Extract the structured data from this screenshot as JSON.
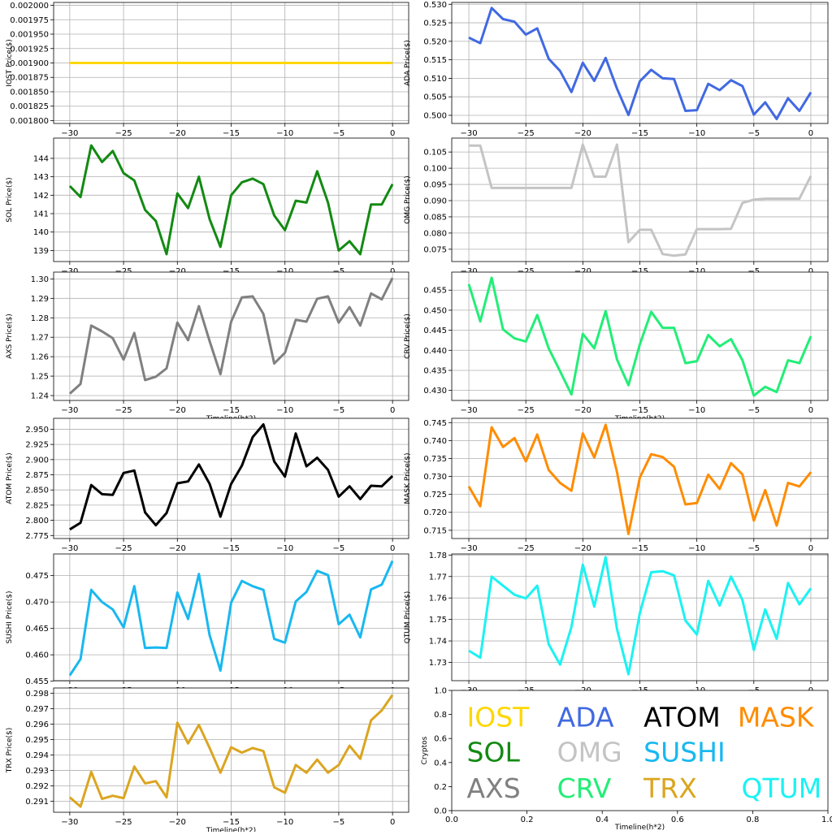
{
  "chart_data": [
    {
      "type": "line",
      "name": "IOST",
      "ylabel": "IOST Price($)",
      "xlabel": "",
      "color": "#ffd700",
      "xlim": [
        -31.5,
        1.5
      ],
      "ylim": [
        0.001795,
        0.002005
      ],
      "yticks": [
        "0.001800",
        "0.001825",
        "0.001850",
        "0.001875",
        "0.001900",
        "0.001925",
        "0.001950",
        "0.001975",
        "0.002000"
      ],
      "ytick_values": [
        0.0018,
        0.001825,
        0.00185,
        0.001875,
        0.0019,
        0.001925,
        0.00195,
        0.001975,
        0.002
      ],
      "xticks": [
        "−30",
        "−25",
        "−20",
        "−15",
        "−10",
        "−5",
        "0"
      ],
      "x": [
        -30,
        -29,
        -28,
        -27,
        -26,
        -25,
        -24,
        -23,
        -22,
        -21,
        -20,
        -19,
        -18,
        -17,
        -16,
        -15,
        -14,
        -13,
        -12,
        -11,
        -10,
        -9,
        -8,
        -7,
        -6,
        -5,
        -4,
        -3,
        -2,
        -1,
        0
      ],
      "values": [
        0.0019,
        0.0019,
        0.0019,
        0.0019,
        0.0019,
        0.0019,
        0.0019,
        0.0019,
        0.0019,
        0.0019,
        0.0019,
        0.0019,
        0.0019,
        0.0019,
        0.0019,
        0.0019,
        0.0019,
        0.0019,
        0.0019,
        0.0019,
        0.0019,
        0.0019,
        0.0019,
        0.0019,
        0.0019,
        0.0019,
        0.0019,
        0.0019,
        0.0019,
        0.0019,
        0.0019
      ]
    },
    {
      "type": "line",
      "name": "ADA",
      "ylabel": "ADA Price($)",
      "xlabel": "",
      "color": "#4169e1",
      "xlim": [
        -31.5,
        1.5
      ],
      "ylim": [
        0.4978,
        0.5305
      ],
      "yticks": [
        "0.500",
        "0.505",
        "0.510",
        "0.515",
        "0.520",
        "0.525",
        "0.530"
      ],
      "ytick_values": [
        0.5,
        0.505,
        0.51,
        0.515,
        0.52,
        0.525,
        0.53
      ],
      "xticks": [
        "−30",
        "−25",
        "−20",
        "−15",
        "−10",
        "−5",
        "0"
      ],
      "x": [
        -30,
        -29,
        -28,
        -27,
        -26,
        -25,
        -24,
        -23,
        -22,
        -21,
        -20,
        -19,
        -18,
        -17,
        -16,
        -15,
        -14,
        -13,
        -12,
        -11,
        -10,
        -9,
        -8,
        -7,
        -6,
        -5,
        -4,
        -3,
        -2,
        -1,
        0
      ],
      "values": [
        0.521,
        0.5195,
        0.529,
        0.526,
        0.5253,
        0.5218,
        0.5235,
        0.5153,
        0.512,
        0.5063,
        0.5142,
        0.5093,
        0.5155,
        0.5072,
        0.5001,
        0.5092,
        0.5123,
        0.51,
        0.5098,
        0.5012,
        0.5014,
        0.5085,
        0.5068,
        0.5095,
        0.5079,
        0.5002,
        0.5035,
        0.499,
        0.5046,
        0.5012,
        0.5062
      ]
    },
    {
      "type": "line",
      "name": "SOL",
      "ylabel": "SOL Price($)",
      "xlabel": "",
      "color": "#138a13",
      "xlim": [
        -31.5,
        1.5
      ],
      "ylim": [
        138.4,
        145.1
      ],
      "yticks": [
        "139",
        "140",
        "141",
        "142",
        "143",
        "144"
      ],
      "ytick_values": [
        139,
        140,
        141,
        142,
        143,
        144
      ],
      "xticks": [
        "−30",
        "−25",
        "−20",
        "−15",
        "−10",
        "−5",
        "0"
      ],
      "x": [
        -30,
        -29,
        -28,
        -27,
        -26,
        -25,
        -24,
        -23,
        -22,
        -21,
        -20,
        -19,
        -18,
        -17,
        -16,
        -15,
        -14,
        -13,
        -12,
        -11,
        -10,
        -9,
        -8,
        -7,
        -6,
        -5,
        -4,
        -3,
        -2,
        -1,
        0
      ],
      "values": [
        142.5,
        141.9,
        144.7,
        143.8,
        144.4,
        143.2,
        142.8,
        141.2,
        140.6,
        138.8,
        142.1,
        141.3,
        143.0,
        140.7,
        139.2,
        142.0,
        142.7,
        142.9,
        142.6,
        140.9,
        140.1,
        141.7,
        141.6,
        143.3,
        141.6,
        139.0,
        139.5,
        138.8,
        141.5,
        141.5,
        142.6
      ]
    },
    {
      "type": "line",
      "name": "OMG",
      "ylabel": "OMG Price($)",
      "xlabel": "",
      "color": "#c4c4c4",
      "xlim": [
        -31.5,
        1.5
      ],
      "ylim": [
        0.0712,
        0.1093
      ],
      "yticks": [
        "0.075",
        "0.080",
        "0.085",
        "0.090",
        "0.095",
        "0.100",
        "0.105"
      ],
      "ytick_values": [
        0.075,
        0.08,
        0.085,
        0.09,
        0.095,
        0.1,
        0.105
      ],
      "xticks": [
        "−30",
        "−25",
        "−20",
        "−15",
        "−10",
        "−5",
        "0"
      ],
      "x": [
        -30,
        -29,
        -28,
        -27,
        -26,
        -25,
        -24,
        -23,
        -22,
        -21,
        -20,
        -19,
        -18,
        -17,
        -16,
        -15,
        -14,
        -13,
        -12,
        -11,
        -10,
        -9,
        -8,
        -7,
        -6,
        -5,
        -4,
        -3,
        -2,
        -1,
        0
      ],
      "values": [
        0.107,
        0.107,
        0.0939,
        0.0939,
        0.0939,
        0.0939,
        0.0939,
        0.0939,
        0.0939,
        0.0939,
        0.1073,
        0.0974,
        0.0974,
        0.1073,
        0.0772,
        0.081,
        0.081,
        0.0735,
        0.073,
        0.0734,
        0.0812,
        0.0812,
        0.0812,
        0.0813,
        0.0893,
        0.0903,
        0.0906,
        0.0906,
        0.0906,
        0.0906,
        0.0976
      ]
    },
    {
      "type": "line",
      "name": "AXS",
      "ylabel": "AXS Price($)",
      "xlabel": "Timeline(h*2)",
      "color": "#808080",
      "xlim": [
        -31.5,
        1.5
      ],
      "ylim": [
        1.2375,
        1.3035
      ],
      "yticks": [
        "1.24",
        "1.25",
        "1.26",
        "1.27",
        "1.28",
        "1.29",
        "1.30"
      ],
      "ytick_values": [
        1.24,
        1.25,
        1.26,
        1.27,
        1.28,
        1.29,
        1.3
      ],
      "xticks": [
        "−30",
        "−25",
        "−20",
        "−15",
        "−10",
        "−5",
        "0"
      ],
      "x": [
        -30,
        -29,
        -28,
        -27,
        -26,
        -25,
        -24,
        -23,
        -22,
        -21,
        -20,
        -19,
        -18,
        -17,
        -16,
        -15,
        -14,
        -13,
        -12,
        -11,
        -10,
        -9,
        -8,
        -7,
        -6,
        -5,
        -4,
        -3,
        -2,
        -1,
        0
      ],
      "values": [
        1.241,
        1.246,
        1.276,
        1.273,
        1.2695,
        1.2585,
        1.2722,
        1.248,
        1.2497,
        1.254,
        1.2775,
        1.2685,
        1.286,
        1.268,
        1.251,
        1.278,
        1.2905,
        1.291,
        1.282,
        1.2565,
        1.262,
        1.279,
        1.278,
        1.2898,
        1.291,
        1.2775,
        1.2855,
        1.276,
        1.2925,
        1.2895,
        1.3005
      ]
    },
    {
      "type": "line",
      "name": "CRV",
      "ylabel": "CRV Price($)",
      "xlabel": "Timeline(h*2)",
      "color": "#22ee77",
      "xlim": [
        -31.5,
        1.5
      ],
      "ylim": [
        0.4275,
        0.4595
      ],
      "yticks": [
        "0.430",
        "0.435",
        "0.440",
        "0.445",
        "0.450",
        "0.455"
      ],
      "ytick_values": [
        0.43,
        0.435,
        0.44,
        0.445,
        0.45,
        0.455
      ],
      "xticks": [
        "−30",
        "−25",
        "−20",
        "−15",
        "−10",
        "−5",
        "0"
      ],
      "x": [
        -30,
        -29,
        -28,
        -27,
        -26,
        -25,
        -24,
        -23,
        -22,
        -21,
        -20,
        -19,
        -18,
        -17,
        -16,
        -15,
        -14,
        -13,
        -12,
        -11,
        -10,
        -9,
        -8,
        -7,
        -6,
        -5,
        -4,
        -3,
        -2,
        -1,
        0
      ],
      "values": [
        0.4565,
        0.4472,
        0.4581,
        0.4452,
        0.443,
        0.4422,
        0.4488,
        0.4405,
        0.4348,
        0.429,
        0.4441,
        0.4405,
        0.4498,
        0.4377,
        0.4313,
        0.4415,
        0.4496,
        0.4456,
        0.4456,
        0.4368,
        0.4373,
        0.4438,
        0.441,
        0.4428,
        0.4375,
        0.4287,
        0.4309,
        0.4296,
        0.4375,
        0.4368,
        0.4435
      ]
    },
    {
      "type": "line",
      "name": "ATOM",
      "ylabel": "ATOM  Price($)",
      "xlabel": "",
      "color": "#000000",
      "xlim": [
        -31.5,
        1.5
      ],
      "ylim": [
        2.77,
        2.968
      ],
      "yticks": [
        "2.775",
        "2.800",
        "2.825",
        "2.850",
        "2.875",
        "2.900",
        "2.925",
        "2.950"
      ],
      "ytick_values": [
        2.775,
        2.8,
        2.825,
        2.85,
        2.875,
        2.9,
        2.925,
        2.95
      ],
      "xticks": [
        "−30",
        "−25",
        "−20",
        "−15",
        "−10",
        "−5",
        "0"
      ],
      "x": [
        -30,
        -29,
        -28,
        -27,
        -26,
        -25,
        -24,
        -23,
        -22,
        -21,
        -20,
        -19,
        -18,
        -17,
        -16,
        -15,
        -14,
        -13,
        -12,
        -11,
        -10,
        -9,
        -8,
        -7,
        -6,
        -5,
        -4,
        -3,
        -2,
        -1,
        0
      ],
      "values": [
        2.785,
        2.796,
        2.858,
        2.843,
        2.842,
        2.878,
        2.882,
        2.813,
        2.792,
        2.812,
        2.861,
        2.864,
        2.892,
        2.86,
        2.806,
        2.86,
        2.89,
        2.937,
        2.958,
        2.897,
        2.872,
        2.943,
        2.889,
        2.903,
        2.883,
        2.839,
        2.856,
        2.835,
        2.857,
        2.856,
        2.873
      ]
    },
    {
      "type": "line",
      "name": "MASK",
      "ylabel": "MASK  Price($)",
      "xlabel": "",
      "color": "#ff8c00",
      "xlim": [
        -31.5,
        1.5
      ],
      "ylim": [
        0.7127,
        0.7462
      ],
      "yticks": [
        "0.715",
        "0.720",
        "0.725",
        "0.730",
        "0.735",
        "0.740",
        "0.745"
      ],
      "ytick_values": [
        0.715,
        0.72,
        0.725,
        0.73,
        0.735,
        0.74,
        0.745
      ],
      "xticks": [
        "−30",
        "−25",
        "−20",
        "−15",
        "−10",
        "−5",
        "0"
      ],
      "x": [
        -30,
        -29,
        -28,
        -27,
        -26,
        -25,
        -24,
        -23,
        -22,
        -21,
        -20,
        -19,
        -18,
        -17,
        -16,
        -15,
        -14,
        -13,
        -12,
        -11,
        -10,
        -9,
        -8,
        -7,
        -6,
        -5,
        -4,
        -3,
        -2,
        -1,
        0
      ],
      "values": [
        0.7272,
        0.7217,
        0.7437,
        0.7382,
        0.7407,
        0.7342,
        0.7417,
        0.7318,
        0.7282,
        0.726,
        0.742,
        0.7353,
        0.7444,
        0.7312,
        0.714,
        0.7297,
        0.7362,
        0.7354,
        0.7327,
        0.7222,
        0.7226,
        0.7305,
        0.7265,
        0.7337,
        0.7306,
        0.7177,
        0.7262,
        0.7163,
        0.7282,
        0.7272,
        0.7312
      ]
    },
    {
      "type": "line",
      "name": "SUSHI",
      "ylabel": "SUSHI Price($)",
      "xlabel": "",
      "color": "#19b8f0",
      "xlim": [
        -31.5,
        1.5
      ],
      "ylim": [
        0.4551,
        0.4791
      ],
      "yticks": [
        "0.455",
        "0.460",
        "0.465",
        "0.470",
        "0.475"
      ],
      "ytick_values": [
        0.455,
        0.46,
        0.465,
        0.47,
        0.475
      ],
      "xticks": [
        "−30",
        "−25",
        "−20",
        "−15",
        "−10",
        "−5",
        "0"
      ],
      "x": [
        -30,
        -29,
        -28,
        -27,
        -26,
        -25,
        -24,
        -23,
        -22,
        -21,
        -20,
        -19,
        -18,
        -17,
        -16,
        -15,
        -14,
        -13,
        -12,
        -11,
        -10,
        -9,
        -8,
        -7,
        -6,
        -5,
        -4,
        -3,
        -2,
        -1,
        0
      ],
      "values": [
        0.4561,
        0.4592,
        0.4723,
        0.47,
        0.4686,
        0.4652,
        0.473,
        0.4613,
        0.4614,
        0.4613,
        0.4718,
        0.4668,
        0.4753,
        0.4637,
        0.457,
        0.4699,
        0.474,
        0.473,
        0.4723,
        0.463,
        0.4623,
        0.4701,
        0.4719,
        0.4759,
        0.4751,
        0.4658,
        0.4676,
        0.4633,
        0.4724,
        0.4733,
        0.4778
      ]
    },
    {
      "type": "line",
      "name": "QTUM",
      "ylabel": "QTUM Price($)",
      "xlabel": "",
      "color": "#1cf2f2",
      "xlim": [
        -31.5,
        1.5
      ],
      "ylim": [
        1.7215,
        1.7805
      ],
      "yticks": [
        "1.73",
        "1.74",
        "1.75",
        "1.76",
        "1.77",
        "1.78"
      ],
      "ytick_values": [
        1.73,
        1.74,
        1.75,
        1.76,
        1.77,
        1.78
      ],
      "xticks": [
        "−30",
        "−25",
        "−20",
        "−15",
        "−10",
        "−5",
        "0"
      ],
      "x": [
        -30,
        -29,
        -28,
        -27,
        -26,
        -25,
        -24,
        -23,
        -22,
        -21,
        -20,
        -19,
        -18,
        -17,
        -16,
        -15,
        -14,
        -13,
        -12,
        -11,
        -10,
        -9,
        -8,
        -7,
        -6,
        -5,
        -4,
        -3,
        -2,
        -1,
        0
      ],
      "values": [
        1.7355,
        1.7322,
        1.77,
        1.7657,
        1.7615,
        1.7598,
        1.7657,
        1.7385,
        1.729,
        1.7465,
        1.7755,
        1.756,
        1.779,
        1.7455,
        1.7245,
        1.753,
        1.772,
        1.7725,
        1.7705,
        1.7495,
        1.743,
        1.768,
        1.7565,
        1.77,
        1.759,
        1.7358,
        1.7547,
        1.741,
        1.767,
        1.757,
        1.7645
      ]
    },
    {
      "type": "line",
      "name": "TRX",
      "ylabel": "TRX Price($)",
      "xlabel": "Timeline(h*2)",
      "color": "#dba520",
      "xlim": [
        -31.5,
        1.5
      ],
      "ylim": [
        0.29028,
        0.29835
      ],
      "yticks": [
        "0.291",
        "0.292",
        "0.293",
        "0.294",
        "0.295",
        "0.296",
        "0.297",
        "0.298"
      ],
      "ytick_values": [
        0.291,
        0.292,
        0.293,
        0.294,
        0.295,
        0.296,
        0.297,
        0.298
      ],
      "xticks": [
        "−30",
        "−25",
        "−20",
        "−15",
        "−10",
        "−5",
        "0"
      ],
      "x": [
        -30,
        -29,
        -28,
        -27,
        -26,
        -25,
        -24,
        -23,
        -22,
        -21,
        -20,
        -19,
        -18,
        -17,
        -16,
        -15,
        -14,
        -13,
        -12,
        -11,
        -10,
        -9,
        -8,
        -7,
        -6,
        -5,
        -4,
        -3,
        -2,
        -1,
        0
      ],
      "values": [
        0.29125,
        0.29065,
        0.2929,
        0.29115,
        0.29135,
        0.2912,
        0.29325,
        0.29215,
        0.2923,
        0.29125,
        0.2961,
        0.29475,
        0.29595,
        0.29445,
        0.29285,
        0.2945,
        0.29415,
        0.29445,
        0.29425,
        0.2919,
        0.29155,
        0.29335,
        0.29285,
        0.2937,
        0.29285,
        0.29335,
        0.2946,
        0.29375,
        0.29625,
        0.2969,
        0.2979
      ]
    }
  ],
  "legend_panel": {
    "ylabel": "Cryptos",
    "xlabel": "Timeline(h*2)",
    "xticks": [
      "0.0",
      "0.2",
      "0.4",
      "0.6",
      "0.8",
      "1.0"
    ],
    "yticks": [
      "0.0",
      "0.2",
      "0.4",
      "0.6",
      "0.8",
      "1.0"
    ],
    "entries": [
      {
        "label": "IOST",
        "color": "#ffd700",
        "x": 0.04,
        "y": 0.78
      },
      {
        "label": "ADA",
        "color": "#4169e1",
        "x": 0.28,
        "y": 0.78
      },
      {
        "label": "ATOM",
        "color": "#000000",
        "x": 0.51,
        "y": 0.78
      },
      {
        "label": "MASK",
        "color": "#ff8c00",
        "x": 0.76,
        "y": 0.78
      },
      {
        "label": "SOL",
        "color": "#138a13",
        "x": 0.04,
        "y": 0.49
      },
      {
        "label": "OMG",
        "color": "#c4c4c4",
        "x": 0.28,
        "y": 0.49
      },
      {
        "label": "SUSHI",
        "color": "#19b8f0",
        "x": 0.51,
        "y": 0.49
      },
      {
        "label": "AXS",
        "color": "#808080",
        "x": 0.04,
        "y": 0.19
      },
      {
        "label": "CRV",
        "color": "#22ee77",
        "x": 0.28,
        "y": 0.19
      },
      {
        "label": "TRX",
        "color": "#dba520",
        "x": 0.51,
        "y": 0.19
      },
      {
        "label": "QTUM",
        "color": "#1cf2f2",
        "x": 0.77,
        "y": 0.19
      }
    ]
  }
}
